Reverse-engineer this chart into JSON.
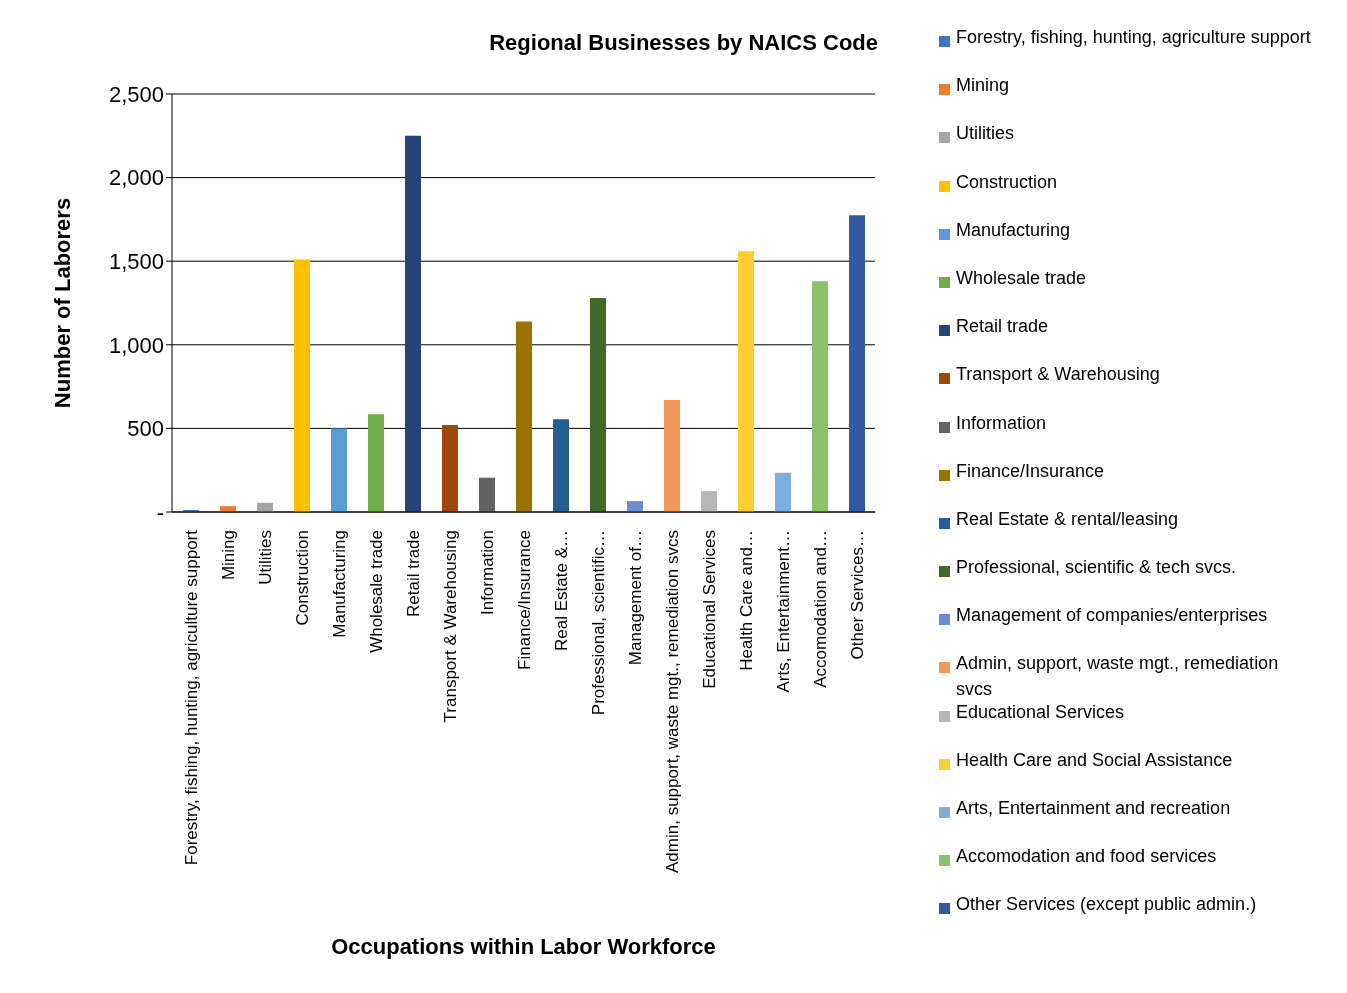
{
  "chart_data": {
    "type": "bar",
    "title": "Regional Businesses by NAICS Code",
    "xlabel": "Occupations within Labor Workforce",
    "ylabel": "Number of Laborers",
    "categories": [
      "Forestry, fishing, hunting, agriculture support",
      "Mining",
      "Utilities",
      "Construction",
      "Manufacturing",
      "Wholesale trade",
      "Retail trade",
      "Transport & Warehousing",
      "Information",
      "Finance/Insurance",
      "Real Estate &…",
      "Professional, scientific…",
      "Management of…",
      "Admin, support, waste mgt., remediation svcs",
      "Educational Services",
      "Health Care and…",
      "Arts, Entertainment…",
      "Accomodation and…",
      "Other Services…"
    ],
    "stacked": true,
    "series": [
      {
        "name": "Forestry, fishing, hunting, agriculture support",
        "color": "#4472c4",
        "values": [
          12,
          null,
          null,
          null,
          null,
          null,
          null,
          null,
          null,
          null,
          null,
          null,
          null,
          null,
          null,
          null,
          null,
          null,
          null
        ]
      },
      {
        "name": "Mining",
        "color": "#ed7d31",
        "values": [
          null,
          35,
          null,
          null,
          null,
          null,
          null,
          null,
          null,
          null,
          null,
          null,
          null,
          null,
          null,
          null,
          null,
          null,
          null
        ]
      },
      {
        "name": "Utilities",
        "color": "#a5a5a5",
        "values": [
          null,
          null,
          55,
          null,
          null,
          null,
          null,
          null,
          null,
          null,
          null,
          null,
          null,
          null,
          null,
          null,
          null,
          null,
          null
        ]
      },
      {
        "name": "Construction",
        "color": "#ffc000",
        "values": [
          null,
          null,
          null,
          1510,
          null,
          null,
          null,
          null,
          null,
          null,
          null,
          null,
          null,
          null,
          null,
          null,
          null,
          null,
          null
        ]
      },
      {
        "name": "Manufacturing",
        "color": "#5b9bd5",
        "values": [
          null,
          null,
          null,
          null,
          500,
          null,
          null,
          null,
          null,
          null,
          null,
          null,
          null,
          null,
          null,
          null,
          null,
          null,
          null
        ]
      },
      {
        "name": "Wholesale trade",
        "color": "#70ad47",
        "values": [
          null,
          null,
          null,
          null,
          null,
          585,
          null,
          null,
          null,
          null,
          null,
          null,
          null,
          null,
          null,
          null,
          null,
          null,
          null
        ]
      },
      {
        "name": "Retail trade",
        "color": "#264478",
        "values": [
          null,
          null,
          null,
          null,
          null,
          null,
          2250,
          null,
          null,
          null,
          null,
          null,
          null,
          null,
          null,
          null,
          null,
          null,
          null
        ]
      },
      {
        "name": "Transport & Warehousing",
        "color": "#9e480e",
        "values": [
          null,
          null,
          null,
          null,
          null,
          null,
          null,
          520,
          null,
          null,
          null,
          null,
          null,
          null,
          null,
          null,
          null,
          null,
          null
        ]
      },
      {
        "name": "Information",
        "color": "#636363",
        "values": [
          null,
          null,
          null,
          null,
          null,
          null,
          null,
          null,
          205,
          null,
          null,
          null,
          null,
          null,
          null,
          null,
          null,
          null,
          null
        ]
      },
      {
        "name": "Finance/Insurance",
        "color": "#997300",
        "values": [
          null,
          null,
          null,
          null,
          null,
          null,
          null,
          null,
          null,
          1140,
          null,
          null,
          null,
          null,
          null,
          null,
          null,
          null,
          null
        ]
      },
      {
        "name": "Real Estate & rental/leasing",
        "color": "#255e91",
        "values": [
          null,
          null,
          null,
          null,
          null,
          null,
          null,
          null,
          null,
          null,
          555,
          null,
          null,
          null,
          null,
          null,
          null,
          null,
          null
        ]
      },
      {
        "name": "Professional, scientific & tech svcs.",
        "color": "#43682b",
        "values": [
          null,
          null,
          null,
          null,
          null,
          null,
          null,
          null,
          null,
          null,
          null,
          1280,
          null,
          null,
          null,
          null,
          null,
          null,
          null
        ]
      },
      {
        "name": "Management of companies/enterprises",
        "color": "#698ed0",
        "values": [
          null,
          null,
          null,
          null,
          null,
          null,
          null,
          null,
          null,
          null,
          null,
          null,
          65,
          null,
          null,
          null,
          null,
          null,
          null
        ]
      },
      {
        "name": "Admin, support, waste mgt., remediation svcs",
        "color": "#f1975a",
        "values": [
          null,
          null,
          null,
          null,
          null,
          null,
          null,
          null,
          null,
          null,
          null,
          null,
          null,
          670,
          null,
          null,
          null,
          null,
          null
        ]
      },
      {
        "name": "Educational Services",
        "color": "#b7b7b7",
        "values": [
          null,
          null,
          null,
          null,
          null,
          null,
          null,
          null,
          null,
          null,
          null,
          null,
          null,
          null,
          125,
          null,
          null,
          null,
          null
        ]
      },
      {
        "name": "Health Care and Social Assistance",
        "color": "#ffcd33",
        "values": [
          null,
          null,
          null,
          null,
          null,
          null,
          null,
          null,
          null,
          null,
          null,
          null,
          null,
          null,
          null,
          1560,
          null,
          null,
          null
        ]
      },
      {
        "name": "Arts, Entertainment and recreation",
        "color": "#7cafdd",
        "values": [
          null,
          null,
          null,
          null,
          null,
          null,
          null,
          null,
          null,
          null,
          null,
          null,
          null,
          null,
          null,
          null,
          235,
          null,
          null
        ]
      },
      {
        "name": "Accomodation and food services",
        "color": "#8cc168",
        "values": [
          null,
          null,
          null,
          null,
          null,
          null,
          null,
          null,
          null,
          null,
          null,
          null,
          null,
          null,
          null,
          null,
          null,
          1380,
          null
        ]
      },
      {
        "name": "Other Services (except public admin.)",
        "color": "#335aa1",
        "values": [
          null,
          null,
          null,
          null,
          null,
          null,
          null,
          null,
          null,
          null,
          null,
          null,
          null,
          null,
          null,
          null,
          null,
          null,
          1775
        ]
      }
    ],
    "ylim": [
      0,
      2500
    ],
    "yticks": [
      {
        "value": 0,
        "label": "-"
      },
      {
        "value": 500,
        "label": "500"
      },
      {
        "value": 1000,
        "label": "1,000"
      },
      {
        "value": 1500,
        "label": "1,500"
      },
      {
        "value": 2000,
        "label": "2,000"
      },
      {
        "value": 2500,
        "label": "2,500"
      }
    ],
    "grid": "y",
    "legend": "right"
  }
}
